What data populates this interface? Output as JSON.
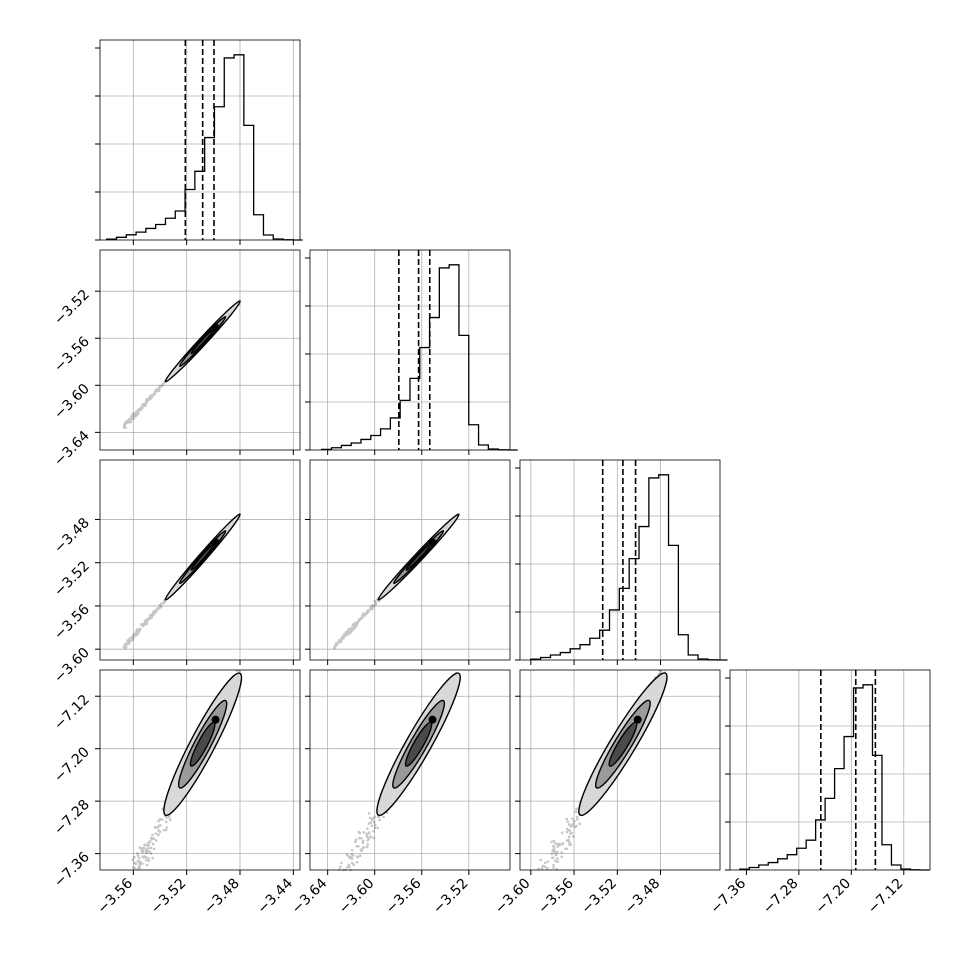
{
  "chart_data": {
    "type": "corner",
    "grid": true,
    "variables": [
      {
        "range": [
          -3.585,
          -3.435
        ],
        "ticks": [
          "−3.56",
          "−3.52",
          "−3.48",
          "−3.44"
        ],
        "tick_values": [
          -3.56,
          -3.52,
          -3.48,
          -3.44
        ],
        "quantiles": [
          -3.521,
          -3.508,
          -3.4995
        ],
        "hist_edges_start": -3.58,
        "hist_bin_width": 0.00735,
        "hist_counts": [
          0.4,
          1.3,
          2.5,
          3.8,
          5.6,
          7.5,
          10.5,
          14.0,
          24.4,
          33.2,
          49.5,
          64.4,
          88.0,
          89.5,
          55.4,
          12.2,
          2.4,
          0.5,
          0.1,
          0.0
        ]
      },
      {
        "range": [
          -3.655,
          -3.485
        ],
        "ticks": [
          "−3.64",
          "−3.60",
          "−3.56",
          "−3.52"
        ],
        "tick_values": [
          -3.64,
          -3.6,
          -3.56,
          -3.52
        ],
        "quantiles": [
          -3.5795,
          -3.5627,
          -3.5532
        ],
        "hist_edges_start": -3.645,
        "hist_bin_width": 0.00833,
        "hist_counts": [
          0.3,
          1.1,
          2.2,
          3.4,
          5.1,
          7.0,
          10.2,
          15.5,
          24.0,
          34.6,
          49.5,
          64.0,
          88.0,
          89.5,
          55.4,
          12.2,
          2.4,
          0.5,
          0.1,
          0.0
        ]
      },
      {
        "range": [
          -3.61,
          -3.425
        ],
        "ticks": [
          "−3.60",
          "−3.56",
          "−3.52",
          "−3.48"
        ],
        "tick_values": [
          -3.6,
          -3.56,
          -3.52,
          -3.48
        ],
        "quantiles": [
          -3.5335,
          -3.5148,
          -3.5031
        ],
        "hist_edges_start": -3.6,
        "hist_bin_width": 0.0091,
        "hist_counts": [
          0.4,
          1.2,
          2.4,
          3.6,
          5.4,
          7.4,
          10.5,
          14.4,
          24.2,
          34.6,
          49.0,
          64.5,
          88.0,
          89.5,
          55.4,
          12.2,
          2.4,
          0.5,
          0.1,
          0.0
        ]
      },
      {
        "range": [
          -7.385,
          -7.08
        ],
        "ticks": [
          "−7.36",
          "−7.28",
          "−7.20",
          "−7.12"
        ],
        "tick_values": [
          -7.36,
          -7.28,
          -7.2,
          -7.12
        ],
        "quantiles": [
          -7.2465,
          -7.1932,
          -7.1633
        ],
        "hist_edges_start": -7.37,
        "hist_bin_width": 0.01445,
        "hist_counts": [
          0.4,
          1.2,
          2.4,
          3.6,
          5.4,
          7.4,
          10.5,
          14.4,
          24.2,
          34.6,
          49.0,
          64.5,
          88.0,
          89.5,
          55.4,
          12.2,
          2.4,
          0.5,
          0.1,
          0.0
        ]
      }
    ],
    "correlation": "strong-positive",
    "color": "#000000",
    "grid_color": "#b0b0b0"
  }
}
